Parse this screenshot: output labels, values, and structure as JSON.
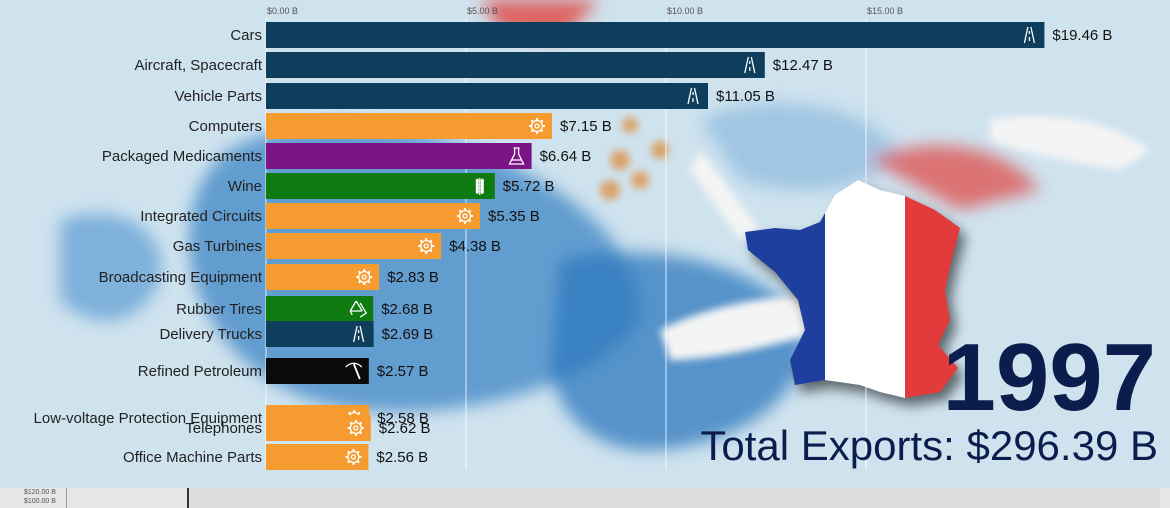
{
  "chart_data": {
    "type": "bar",
    "orientation": "horizontal",
    "xlim": [
      0,
      20
    ],
    "ticks": [
      "$0.00 B",
      "$5.00 B",
      "$10.00 B",
      "$15.00 B"
    ],
    "tick_values": [
      0,
      5,
      10,
      15
    ],
    "categories": [
      "Cars",
      "Aircraft, Spacecraft",
      "Vehicle Parts",
      "Computers",
      "Packaged Medicaments",
      "Wine",
      "Integrated Circuits",
      "Gas Turbines",
      "Broadcasting Equipment",
      "Rubber Tires",
      "Delivery Trucks",
      "Refined Petroleum",
      "Low-voltage Protection Equipment",
      "Telephones",
      "Office Machine Parts"
    ],
    "values": [
      19.46,
      12.47,
      11.05,
      7.15,
      6.64,
      5.72,
      5.35,
      4.38,
      2.83,
      2.68,
      2.69,
      2.57,
      2.58,
      2.62,
      2.56
    ],
    "value_labels": [
      "$19.46 B",
      "$12.47 B",
      "$11.05 B",
      "$7.15 B",
      "$6.64 B",
      "$5.72 B",
      "$5.35 B",
      "$4.38 B",
      "$2.83 B",
      "$2.68 B",
      "$2.69 B",
      "$2.57 B",
      "$2.58 B",
      "$2.62 B",
      "$2.56 B"
    ],
    "colors": [
      "#0f3d5c",
      "#0f3d5c",
      "#0f3d5c",
      "#f59b30",
      "#7a1487",
      "#0f7a0f",
      "#f59b30",
      "#f59b30",
      "#f59b30",
      "#0f7a0f",
      "#0f3d5c",
      "#0a0a0a",
      "#f59b30",
      "#f59b30",
      "#f59b30"
    ],
    "icons": [
      "road-icon",
      "road-icon",
      "road-icon",
      "gear-icon",
      "flask-icon",
      "wheat-icon",
      "gear-icon",
      "gear-icon",
      "gear-icon",
      "recycle-icon",
      "road-icon",
      "pickaxe-icon",
      "gear-icon",
      "gear-icon",
      "gear-icon"
    ],
    "grid": true
  },
  "year": "1997",
  "total_exports": "Total Exports: $296.39 B",
  "timeline": {
    "labels": [
      "$120.00 B",
      "$100.00 B"
    ]
  }
}
